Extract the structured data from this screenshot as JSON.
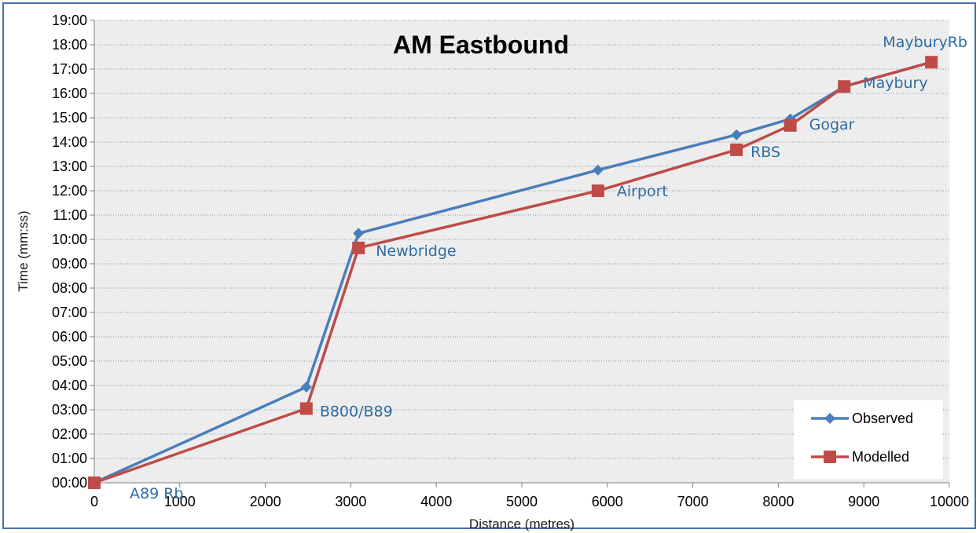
{
  "chart_data": {
    "type": "line",
    "title": "AM Eastbound",
    "xlabel": "Distance (metres)",
    "ylabel": "Time (mm:ss)",
    "xlim": [
      0,
      10000
    ],
    "ylim": [
      0,
      19
    ],
    "x_ticks": [
      "0",
      "1000",
      "2000",
      "3000",
      "4000",
      "5000",
      "6000",
      "7000",
      "8000",
      "9000",
      "10000"
    ],
    "y_ticks": [
      "00:00",
      "01:00",
      "02:00",
      "03:00",
      "04:00",
      "05:00",
      "06:00",
      "07:00",
      "08:00",
      "09:00",
      "10:00",
      "11:00",
      "12:00",
      "13:00",
      "14:00",
      "15:00",
      "16:00",
      "17:00",
      "18:00",
      "19:00"
    ],
    "grid": "horizontal dotted",
    "legend_position": "bottom-right",
    "series": [
      {
        "name": "Observed",
        "color": "#4a7ebb",
        "marker": "diamond",
        "x": [
          0,
          2480,
          3090,
          5890,
          7510,
          8140,
          8770,
          9790
        ],
        "y": [
          "00:00",
          "03:56",
          "10:15",
          "12:51",
          "14:18",
          "14:57",
          "16:17",
          "17:17"
        ]
      },
      {
        "name": "Modelled",
        "color": "#be4b48",
        "marker": "square",
        "x": [
          0,
          2480,
          3090,
          5890,
          7510,
          8140,
          8770,
          9790
        ],
        "y": [
          "00:00",
          "03:03",
          "09:39",
          "12:00",
          "13:41",
          "14:41",
          "16:17",
          "17:17"
        ]
      }
    ],
    "point_labels": [
      "A89 Rb",
      "B800/B89",
      "Newbridge",
      "Airport",
      "RBS",
      "Gogar",
      "Maybury",
      "MayburyRb"
    ]
  }
}
